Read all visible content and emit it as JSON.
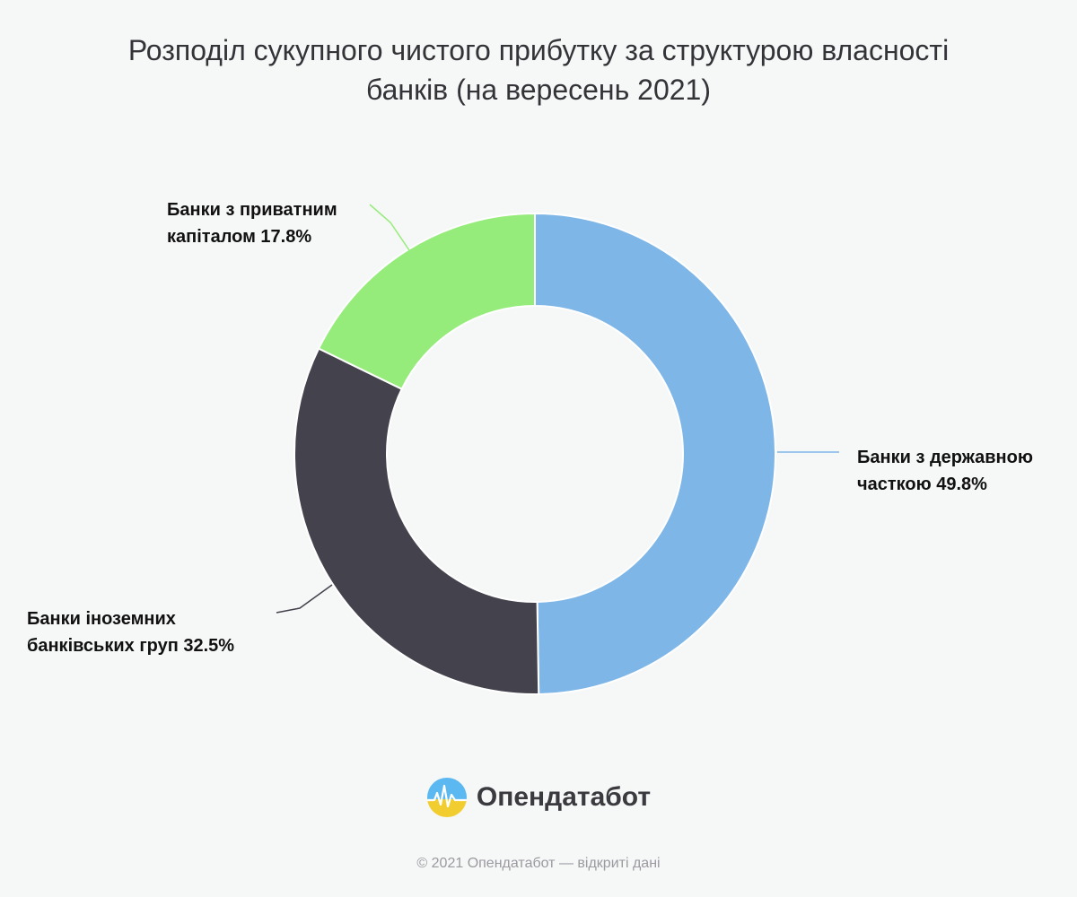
{
  "chart_data": {
    "type": "pie",
    "variant": "donut",
    "title_line1": "Розподіл сукупного чистого прибутку за структурою власності",
    "title_line2": "банків (на вересень 2021)",
    "slices": [
      {
        "label_line1": "Банки з державною",
        "label_line2": "часткою",
        "value": 49.8,
        "value_text": "49.8%",
        "color": "#7eb6e8"
      },
      {
        "label_line1": "Банки іноземних",
        "label_line2": "банківських груп",
        "value": 32.5,
        "value_text": "32.5%",
        "color": "#44434d"
      },
      {
        "label_line1": "Банки з приватним",
        "label_line2": "капіталом",
        "value": 17.8,
        "value_text": "17.8%",
        "color": "#96ec7b"
      }
    ],
    "legend": "none",
    "labels": "outside-with-leaders"
  },
  "brand": {
    "name": "Опендатабот",
    "icon": "opendatabot-logo-icon",
    "colors": {
      "top": "#5bb8f0",
      "bottom": "#f2cd30"
    }
  },
  "footer": {
    "text": "© 2021 Опендатабот — відкриті дані"
  }
}
